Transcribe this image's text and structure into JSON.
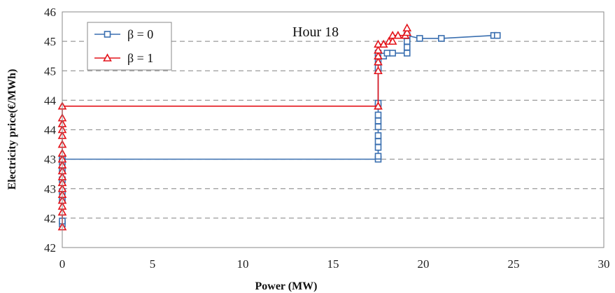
{
  "chart_data": {
    "type": "line",
    "title": "",
    "annotation": "Hour 18",
    "xlabel": "Power (MW)",
    "ylabel": "Electricity price(€/MWh)",
    "xlim": [
      0,
      30
    ],
    "ylim": [
      0,
      8
    ],
    "x_ticks": [
      {
        "value": 0,
        "label": "0"
      },
      {
        "value": 5,
        "label": "5"
      },
      {
        "value": 10,
        "label": "10"
      },
      {
        "value": 15,
        "label": "15"
      },
      {
        "value": 20,
        "label": "20"
      },
      {
        "value": 25,
        "label": "25"
      },
      {
        "value": 30,
        "label": "30"
      }
    ],
    "y_ticks": [
      {
        "value": 0,
        "label": "42"
      },
      {
        "value": 1,
        "label": "42"
      },
      {
        "value": 2,
        "label": "43"
      },
      {
        "value": 3,
        "label": "43"
      },
      {
        "value": 4,
        "label": "44"
      },
      {
        "value": 5,
        "label": "44"
      },
      {
        "value": 6,
        "label": "45"
      },
      {
        "value": 7,
        "label": "45"
      },
      {
        "value": 8,
        "label": "46"
      }
    ],
    "grid": "horizontal-dashed",
    "legend_position": "top-left",
    "series": [
      {
        "name": "β = 0",
        "color": "#3a6fb0",
        "marker": "square",
        "points": [
          [
            0,
            0.8
          ],
          [
            0,
            0.9
          ],
          [
            0,
            1.6
          ],
          [
            0,
            1.9
          ],
          [
            0,
            2.3
          ],
          [
            0,
            2.6
          ],
          [
            0,
            2.9
          ],
          [
            0,
            3.0
          ],
          [
            17.5,
            3.0
          ],
          [
            17.5,
            3.1
          ],
          [
            17.5,
            3.4
          ],
          [
            17.5,
            3.6
          ],
          [
            17.5,
            3.8
          ],
          [
            17.5,
            4.1
          ],
          [
            17.5,
            4.3
          ],
          [
            17.5,
            4.5
          ],
          [
            17.5,
            4.8
          ],
          [
            17.5,
            4.9
          ],
          [
            17.5,
            6.0
          ],
          [
            17.5,
            6.1
          ],
          [
            17.5,
            6.3
          ],
          [
            17.5,
            6.5
          ],
          [
            17.5,
            6.6
          ],
          [
            17.8,
            6.5
          ],
          [
            18.0,
            6.6
          ],
          [
            18.3,
            6.6
          ],
          [
            19.1,
            6.6
          ],
          [
            19.1,
            6.8
          ],
          [
            19.1,
            7.0
          ],
          [
            19.1,
            7.2
          ],
          [
            19.8,
            7.1
          ],
          [
            21.0,
            7.1
          ],
          [
            23.9,
            7.2
          ],
          [
            24.1,
            7.2
          ]
        ]
      },
      {
        "name": "β = 1",
        "color": "#e4141b",
        "marker": "triangle",
        "points": [
          [
            0,
            0.7
          ],
          [
            0,
            1.2
          ],
          [
            0,
            1.4
          ],
          [
            0,
            1.6
          ],
          [
            0,
            1.8
          ],
          [
            0,
            2.0
          ],
          [
            0,
            2.2
          ],
          [
            0,
            2.4
          ],
          [
            0,
            2.6
          ],
          [
            0,
            2.8
          ],
          [
            0,
            3.0
          ],
          [
            0,
            3.2
          ],
          [
            0,
            3.5
          ],
          [
            0,
            3.8
          ],
          [
            0,
            4.0
          ],
          [
            0,
            4.2
          ],
          [
            0,
            4.4
          ],
          [
            0,
            4.8
          ],
          [
            17.5,
            4.8
          ],
          [
            17.5,
            6.0
          ],
          [
            17.5,
            6.3
          ],
          [
            17.5,
            6.5
          ],
          [
            17.5,
            6.7
          ],
          [
            17.5,
            6.9
          ],
          [
            17.8,
            6.9
          ],
          [
            18.1,
            7.0
          ],
          [
            18.3,
            7.0
          ],
          [
            18.3,
            7.2
          ],
          [
            18.6,
            7.2
          ],
          [
            19.0,
            7.2
          ],
          [
            19.1,
            7.3
          ],
          [
            19.1,
            7.45
          ]
        ]
      }
    ]
  }
}
